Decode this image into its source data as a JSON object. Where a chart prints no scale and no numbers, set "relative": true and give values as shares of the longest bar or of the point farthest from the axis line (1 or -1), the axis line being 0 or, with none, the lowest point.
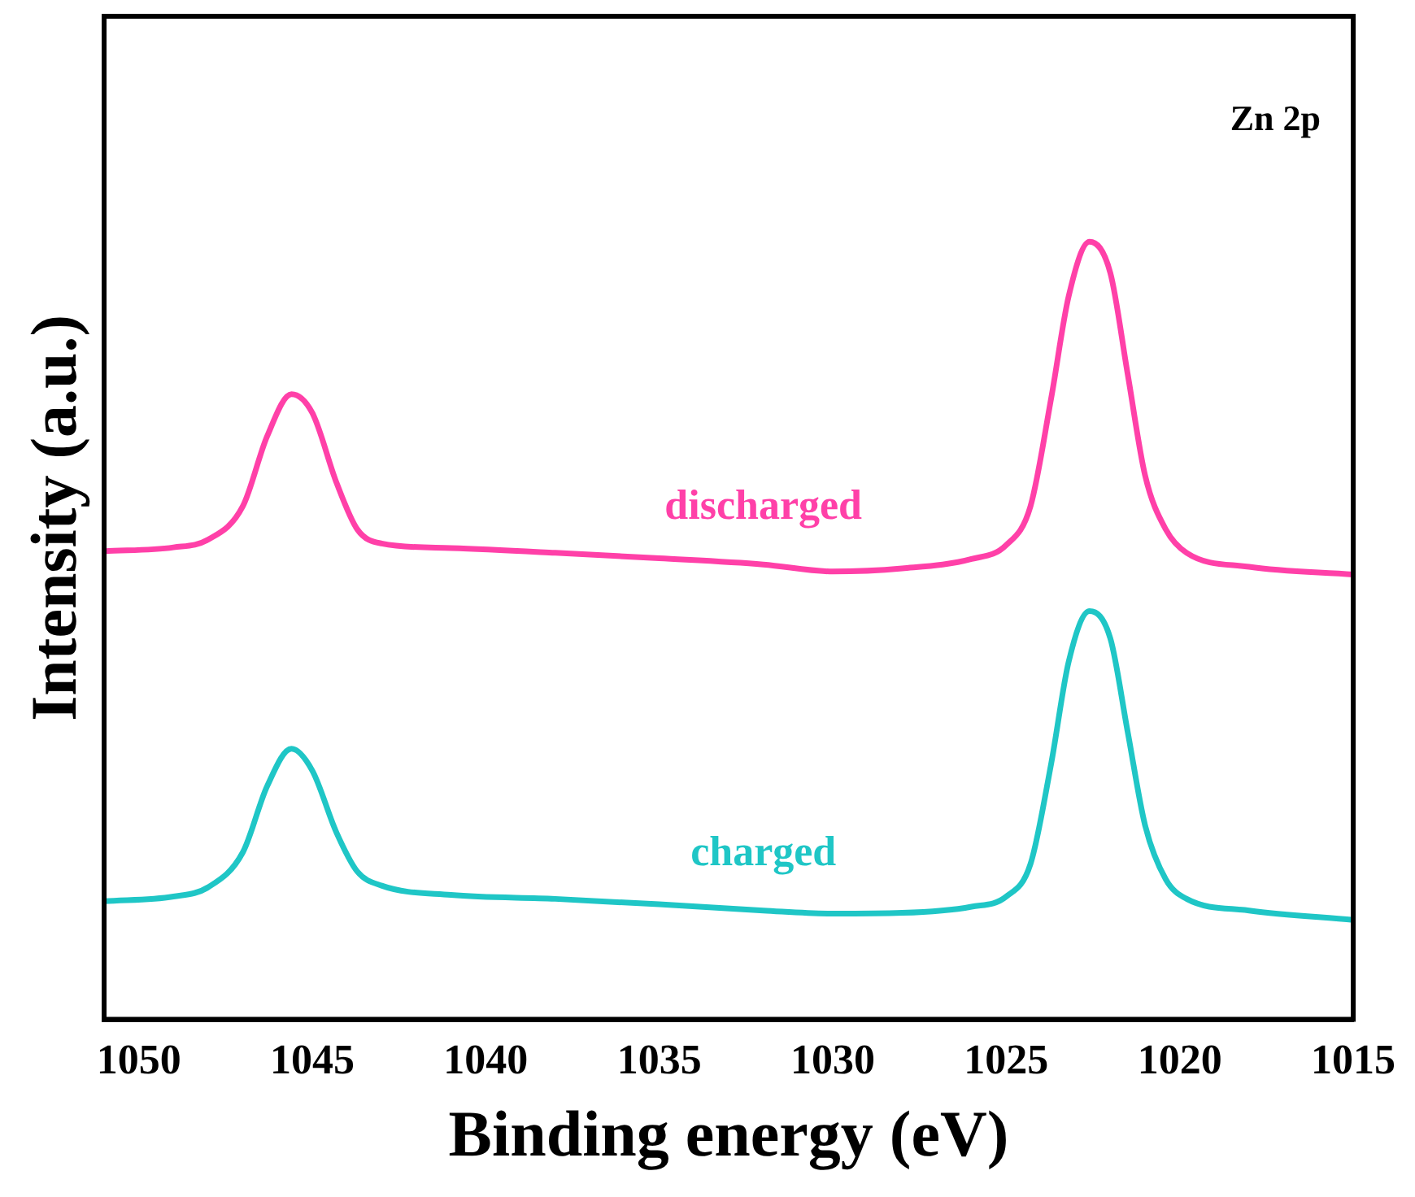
{
  "chart_data": {
    "type": "line",
    "xlabel": "Binding energy (eV)",
    "ylabel": "Intensity (a.u.)",
    "annotations": [
      "Zn 2p"
    ],
    "relative": true,
    "xlim": [
      1051,
      1015
    ],
    "xticks": [
      1050,
      1045,
      1040,
      1035,
      1030,
      1025,
      1020,
      1015
    ],
    "grid": false,
    "legend": false,
    "marker": "none",
    "line_style": "solid",
    "series": [
      {
        "name": "discharged",
        "color": "#ff40a8",
        "x": [
          1051,
          1049,
          1048,
          1047,
          1046.3,
          1045.6,
          1045,
          1044.3,
          1043.7,
          1043,
          1041,
          1038,
          1035,
          1032,
          1030,
          1028,
          1026,
          1025,
          1024.3,
          1023.7,
          1023.2,
          1022.6,
          1022,
          1021.5,
          1021,
          1020.4,
          1019.8,
          1018,
          1015
        ],
        "values": [
          0.602,
          0.607,
          0.617,
          0.66,
          0.75,
          0.804,
          0.78,
          0.69,
          0.63,
          0.612,
          0.606,
          0.6,
          0.593,
          0.585,
          0.576,
          0.58,
          0.592,
          0.61,
          0.66,
          0.8,
          0.93,
          1.0,
          0.96,
          0.83,
          0.7,
          0.63,
          0.6,
          0.582,
          0.572
        ]
      },
      {
        "name": "charged",
        "color": "#1fc6c6",
        "x": [
          1051,
          1049,
          1048,
          1047,
          1046.3,
          1045.6,
          1045,
          1044.3,
          1043.7,
          1043,
          1041,
          1038,
          1035,
          1032,
          1030,
          1028,
          1026,
          1025,
          1024.3,
          1023.7,
          1023.2,
          1022.6,
          1022,
          1021.5,
          1021,
          1020.4,
          1019.8,
          1018,
          1015
        ],
        "values": [
          0.152,
          0.158,
          0.17,
          0.215,
          0.3,
          0.348,
          0.32,
          0.24,
          0.19,
          0.172,
          0.16,
          0.155,
          0.148,
          0.14,
          0.136,
          0.137,
          0.145,
          0.158,
          0.2,
          0.33,
          0.46,
          0.525,
          0.49,
          0.37,
          0.25,
          0.18,
          0.155,
          0.14,
          0.128
        ]
      }
    ]
  }
}
